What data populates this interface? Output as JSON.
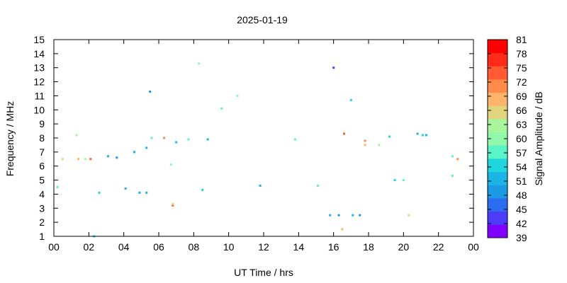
{
  "chart_data": {
    "type": "scatter",
    "title": "2025-01-19",
    "xlabel": "UT Time / hrs",
    "ylabel": "Frequency / MHz",
    "colorbar_label": "Signal Amplitude / dB",
    "xlim": [
      0,
      24
    ],
    "ylim": [
      1,
      15
    ],
    "xticks": [
      "00",
      "02",
      "04",
      "06",
      "08",
      "10",
      "12",
      "14",
      "16",
      "18",
      "20",
      "22",
      "00"
    ],
    "yticks": [
      "1",
      "2",
      "3",
      "4",
      "5",
      "6",
      "7",
      "8",
      "9",
      "10",
      "11",
      "12",
      "13",
      "14",
      "15"
    ],
    "colorbar": {
      "range": [
        39,
        81
      ],
      "ticks": [
        "81",
        "78",
        "75",
        "72",
        "69",
        "66",
        "63",
        "60",
        "57",
        "54",
        "51",
        "48",
        "45",
        "42",
        "39"
      ],
      "colors": [
        "#8000ff",
        "#4c3cf8",
        "#2c6cf0",
        "#1d9ae5",
        "#1ab5e4",
        "#1ed6dc",
        "#59f5c8",
        "#8ff8aa",
        "#a8f59c",
        "#e0d57c",
        "#fdb46a",
        "#ff8a4a",
        "#ff5a32",
        "#ff2a18",
        "#ff0000"
      ]
    },
    "grid": false,
    "points": [
      {
        "t": 0.2,
        "f": 4.5,
        "a": 56
      },
      {
        "t": 0.5,
        "f": 6.5,
        "a": 66
      },
      {
        "t": 1.4,
        "f": 6.5,
        "a": 69
      },
      {
        "t": 1.8,
        "f": 6.5,
        "a": 63
      },
      {
        "t": 2.1,
        "f": 6.5,
        "a": 75
      },
      {
        "t": 1.3,
        "f": 8.2,
        "a": 62
      },
      {
        "t": 2.3,
        "f": 1.0,
        "a": 55
      },
      {
        "t": 2.6,
        "f": 4.1,
        "a": 54
      },
      {
        "t": 3.1,
        "f": 6.7,
        "a": 51
      },
      {
        "t": 3.6,
        "f": 6.6,
        "a": 50
      },
      {
        "t": 4.1,
        "f": 4.4,
        "a": 51
      },
      {
        "t": 4.6,
        "f": 7.0,
        "a": 51
      },
      {
        "t": 4.9,
        "f": 4.1,
        "a": 52
      },
      {
        "t": 5.3,
        "f": 4.1,
        "a": 51
      },
      {
        "t": 5.3,
        "f": 7.3,
        "a": 51
      },
      {
        "t": 5.5,
        "f": 11.3,
        "a": 49
      },
      {
        "t": 5.6,
        "f": 8.0,
        "a": 57
      },
      {
        "t": 6.3,
        "f": 8.0,
        "a": 72
      },
      {
        "t": 6.7,
        "f": 6.1,
        "a": 60
      },
      {
        "t": 6.8,
        "f": 3.2,
        "a": 75
      },
      {
        "t": 6.8,
        "f": 3.3,
        "a": 66
      },
      {
        "t": 7.0,
        "f": 7.7,
        "a": 51
      },
      {
        "t": 7.7,
        "f": 7.9,
        "a": 57
      },
      {
        "t": 8.3,
        "f": 13.3,
        "a": 60
      },
      {
        "t": 8.5,
        "f": 4.3,
        "a": 54
      },
      {
        "t": 8.8,
        "f": 7.9,
        "a": 52
      },
      {
        "t": 9.6,
        "f": 10.1,
        "a": 57
      },
      {
        "t": 10.5,
        "f": 11.0,
        "a": 59
      },
      {
        "t": 11.8,
        "f": 4.6,
        "a": 52
      },
      {
        "t": 13.8,
        "f": 7.9,
        "a": 58
      },
      {
        "t": 15.1,
        "f": 4.6,
        "a": 56
      },
      {
        "t": 15.8,
        "f": 2.5,
        "a": 51
      },
      {
        "t": 16.0,
        "f": 13.0,
        "a": 44
      },
      {
        "t": 16.3,
        "f": 2.5,
        "a": 50
      },
      {
        "t": 16.5,
        "f": 1.5,
        "a": 68
      },
      {
        "t": 16.6,
        "f": 8.3,
        "a": 75
      },
      {
        "t": 17.0,
        "f": 10.7,
        "a": 53
      },
      {
        "t": 17.1,
        "f": 2.5,
        "a": 51
      },
      {
        "t": 17.5,
        "f": 2.5,
        "a": 49
      },
      {
        "t": 17.8,
        "f": 7.8,
        "a": 70
      },
      {
        "t": 17.8,
        "f": 7.5,
        "a": 69
      },
      {
        "t": 18.6,
        "f": 7.5,
        "a": 64
      },
      {
        "t": 19.2,
        "f": 8.1,
        "a": 53
      },
      {
        "t": 19.5,
        "f": 5.0,
        "a": 54
      },
      {
        "t": 20.0,
        "f": 5.0,
        "a": 57
      },
      {
        "t": 20.3,
        "f": 2.5,
        "a": 66
      },
      {
        "t": 20.8,
        "f": 8.3,
        "a": 51
      },
      {
        "t": 21.1,
        "f": 8.2,
        "a": 53
      },
      {
        "t": 21.3,
        "f": 8.2,
        "a": 51
      },
      {
        "t": 22.8,
        "f": 6.7,
        "a": 57
      },
      {
        "t": 22.8,
        "f": 5.3,
        "a": 57
      },
      {
        "t": 23.1,
        "f": 6.5,
        "a": 70
      }
    ]
  }
}
